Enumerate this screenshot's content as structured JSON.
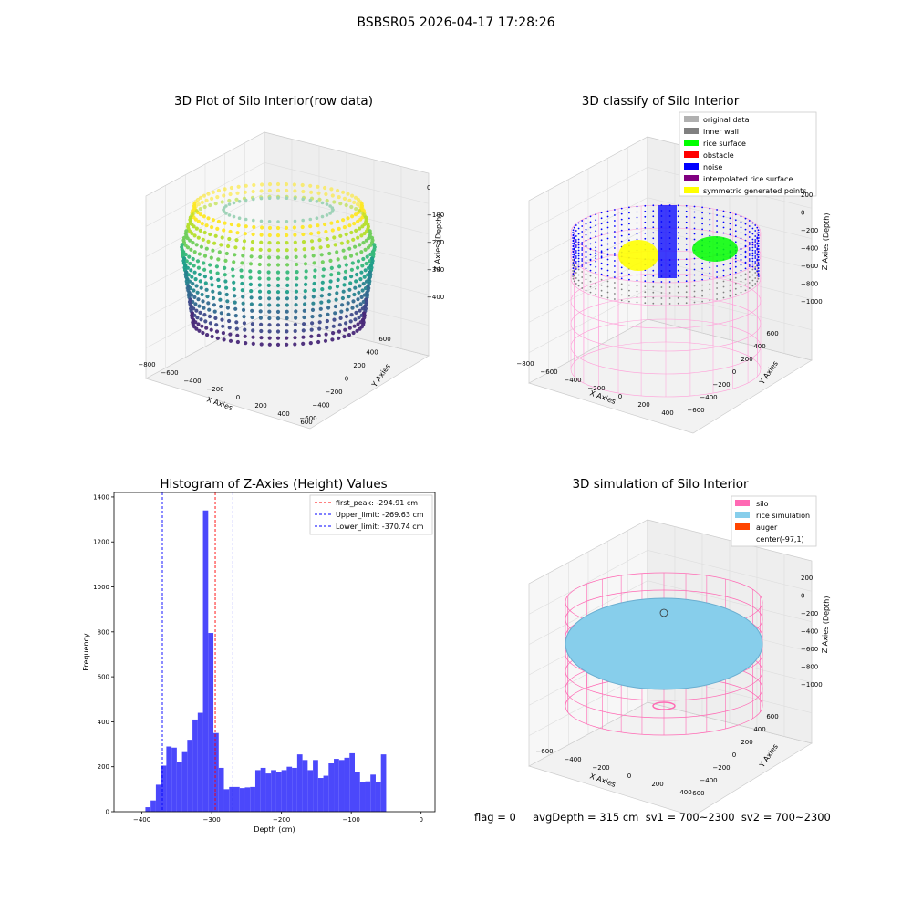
{
  "suptitle": "BSBSR05 2026-04-17 17:28:26",
  "colors": {
    "hist_bar": "#4b48fb",
    "first_peak_line": "#ff0000",
    "limit_line": "#0000ff",
    "silo": "#ff69b4",
    "rice_sim": "#87ceeb",
    "auger": "#ff4500",
    "inner_wall": "#808080",
    "rice_surface": "#00ff00",
    "obstacle": "#ff0000",
    "noise": "#0000ff",
    "interpolated": "#800080",
    "symmetric": "#ffff00",
    "original": "#b0b0b0"
  },
  "panel_raw": {
    "title": "3D Plot of Silo Interior(row data)",
    "xlabel": "X Axies",
    "ylabel": "Y Axies",
    "zlabel": "Z Axies (Depth)",
    "xticks": [
      "−800",
      "−600",
      "−400",
      "−200",
      "0",
      "200",
      "400",
      "600"
    ],
    "yticks": [
      "−600",
      "−400",
      "−200",
      "0",
      "200",
      "400",
      "600"
    ],
    "zticks": [
      "0",
      "−100",
      "−200",
      "−300",
      "−400"
    ]
  },
  "panel_classify": {
    "title": "3D classify of Silo Interior",
    "xlabel": "X Axies",
    "ylabel": "Y Axies",
    "zlabel": "Z Axies (Depth)",
    "xticks": [
      "−800",
      "−600",
      "−400",
      "−200",
      "0",
      "200",
      "400"
    ],
    "yticks": [
      "−600",
      "−400",
      "−200",
      "0",
      "200",
      "400",
      "600"
    ],
    "zticks": [
      "200",
      "0",
      "−200",
      "−400",
      "−600",
      "−800",
      "−1000"
    ],
    "legend": [
      "original data",
      "inner wall",
      "rice surface",
      "obstacle",
      "noise",
      "interpolated rice surface",
      "symmetric generated points"
    ]
  },
  "panel_sim": {
    "title": "3D simulation of Silo Interior",
    "xlabel": "X Axies",
    "ylabel": "Y Axies",
    "zlabel": "Z Axies (Depth)",
    "xticks": [
      "−600",
      "−400",
      "−200",
      "0",
      "200",
      "400"
    ],
    "yticks": [
      "−600",
      "−400",
      "−200",
      "0",
      "200",
      "400",
      "600"
    ],
    "zticks": [
      "200",
      "0",
      "−200",
      "−400",
      "−600",
      "−800",
      "−1000"
    ],
    "legend": [
      "silo",
      "rice simulation",
      "auger",
      "center(-97,1)"
    ]
  },
  "footer": "flag = 0     avgDepth = 315 cm  sv1 = 700~2300  sv2 = 700~2300",
  "chart_data": {
    "type": "bar",
    "title": "Histogram of Z-Axies (Height) Values",
    "xlabel": "Depth (cm)",
    "ylabel": "Frequency",
    "xlim": [
      -440,
      20
    ],
    "ylim": [
      0,
      1420
    ],
    "xticks": [
      -400,
      -300,
      -200,
      -100,
      0
    ],
    "yticks": [
      0,
      200,
      400,
      600,
      800,
      1000,
      1200,
      1400
    ],
    "bin_width": 7.5,
    "bins_start": [
      -395,
      -387.5,
      -380,
      -372.5,
      -365,
      -357.5,
      -350,
      -342.5,
      -335,
      -327.5,
      -320,
      -312.5,
      -305,
      -297.5,
      -290,
      -282.5,
      -275,
      -267.5,
      -260,
      -252.5,
      -245,
      -237.5,
      -230,
      -222.5,
      -215,
      -207.5,
      -200,
      -192.5,
      -185,
      -177.5,
      -170,
      -162.5,
      -155,
      -147.5,
      -140,
      -132.5,
      -125,
      -117.5,
      -110,
      -102.5,
      -95,
      -87.5,
      -80,
      -72.5,
      -65,
      -57.5,
      -50,
      -42.5,
      -35,
      -27.5,
      -20,
      -12.5,
      -5
    ],
    "values": [
      20,
      50,
      120,
      205,
      290,
      285,
      220,
      265,
      320,
      410,
      440,
      1340,
      795,
      350,
      195,
      100,
      110,
      110,
      105,
      108,
      110,
      185,
      195,
      170,
      185,
      175,
      185,
      200,
      195,
      255,
      230,
      185,
      230,
      150,
      160,
      215,
      235,
      230,
      240,
      260,
      175,
      130,
      135,
      165,
      130,
      255,
      0,
      0,
      0,
      0,
      0,
      0,
      0
    ],
    "vlines": [
      {
        "label": "first_peak: -294.91 cm",
        "x": -294.91,
        "color": "#ff0000"
      },
      {
        "label": "Upper_limit: -269.63 cm",
        "x": -269.63,
        "color": "#0000ff"
      },
      {
        "label": "Lower_limit: -370.74 cm",
        "x": -370.74,
        "color": "#0000ff"
      }
    ],
    "legend_position": "top-right",
    "grid": false
  }
}
